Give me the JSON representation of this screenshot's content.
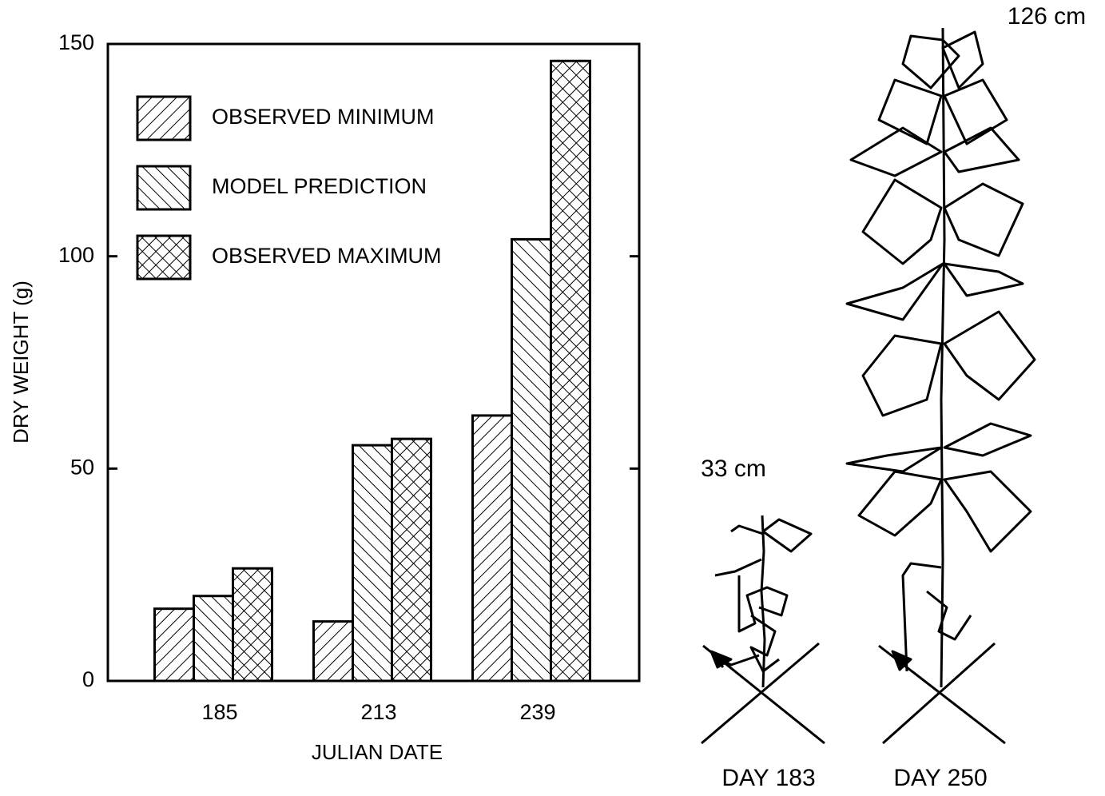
{
  "chart_data": {
    "type": "bar",
    "xlabel": "JULIAN DATE",
    "ylabel": "DRY WEIGHT (g)",
    "categories": [
      "185",
      "213",
      "239"
    ],
    "series": [
      {
        "name": "OBSERVED MINIMUM",
        "color": "#000000",
        "hatch": "backslash",
        "values": [
          17,
          14,
          62.5
        ]
      },
      {
        "name": "MODEL PREDICTION",
        "color": "#000000",
        "hatch": "slash",
        "values": [
          20,
          55.5,
          104
        ]
      },
      {
        "name": "OBSERVED MAXIMUM",
        "color": "#000000",
        "hatch": "cross",
        "values": [
          26.5,
          57,
          146
        ]
      }
    ],
    "ylim": [
      0,
      150
    ],
    "yticks": [
      0,
      50,
      100,
      150
    ],
    "grid": false,
    "legend": "upper left",
    "annotations": [
      "33 cm",
      "126 cm",
      "DAY 183",
      "DAY 250"
    ]
  }
}
